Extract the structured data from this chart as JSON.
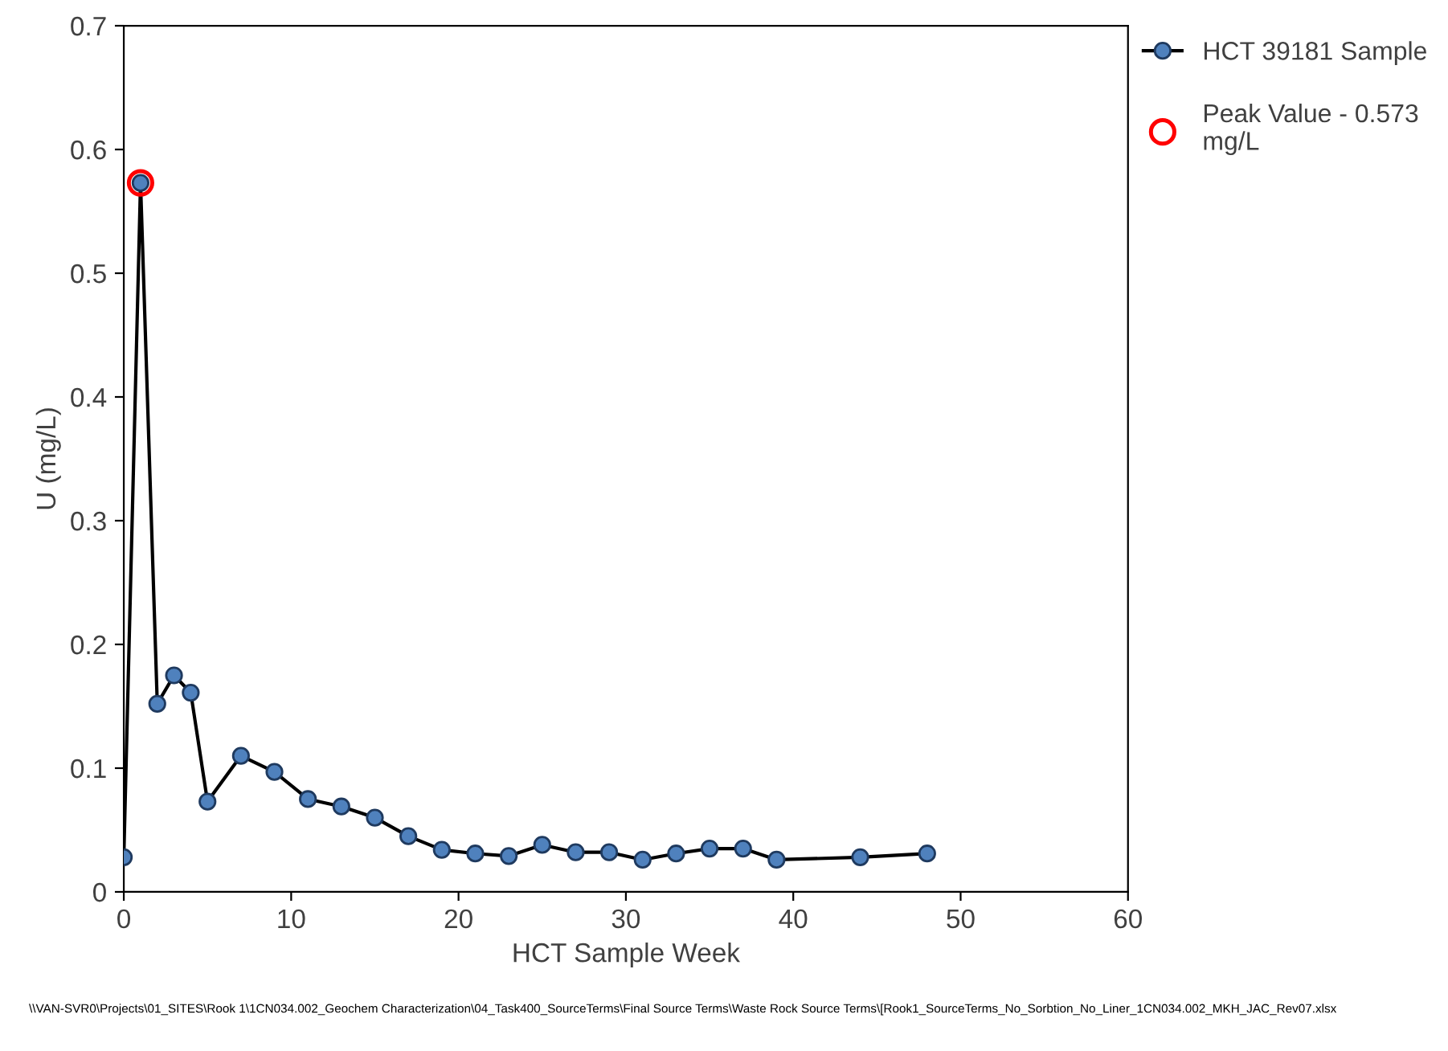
{
  "chart_data": {
    "type": "line",
    "xlabel": "HCT Sample Week",
    "ylabel": "U (mg/L)",
    "xlim": [
      0,
      60
    ],
    "xticks": [
      0,
      10,
      20,
      30,
      40,
      50,
      60
    ],
    "ylim": [
      0,
      0.7
    ],
    "yticks": [
      0,
      0.1,
      0.2,
      0.3,
      0.4,
      0.5,
      0.6,
      0.7
    ],
    "grid": false,
    "legend": "top right",
    "marker": "circle",
    "line_style": "solid",
    "series": [
      {
        "name": "HCT 39181 Sample",
        "color": "#4f81bd",
        "x": [
          0,
          1,
          2,
          3,
          4,
          5,
          7,
          9,
          11,
          13,
          15,
          17,
          19,
          21,
          23,
          25,
          27,
          29,
          31,
          33,
          35,
          37,
          39,
          44,
          48
        ],
        "values": [
          0.028,
          0.573,
          0.152,
          0.175,
          0.161,
          0.073,
          0.11,
          0.097,
          0.075,
          0.069,
          0.06,
          0.045,
          0.034,
          0.031,
          0.029,
          0.038,
          0.032,
          0.032,
          0.026,
          0.031,
          0.035,
          0.035,
          0.026,
          0.028,
          0.031
        ]
      },
      {
        "name": "Peak Value - 0.573 mg/L",
        "type": "scatter",
        "color": "#ff0000",
        "x": [
          1
        ],
        "values": [
          0.573
        ]
      }
    ],
    "annotations": [
      "\\\\VAN-SVR0\\Projects\\01_SITES\\Rook 1\\1CN034.002_Geochem Characterization\\04_Task400_SourceTerms\\Final Source Terms\\Waste Rock Source Terms\\[Rook1_SourceTerms_No_Sorbtion_No_Liner_1CN034.002_MKH_JAC_Rev07.xlsx"
    ]
  }
}
